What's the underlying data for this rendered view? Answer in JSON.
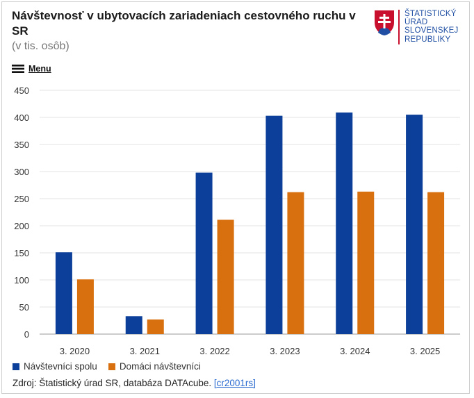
{
  "header": {
    "title": "Návštevnosť v ubytovacích zariadeniach cestovného ruchu v SR",
    "subtitle": "(v tis. osôb)"
  },
  "logo": {
    "icon": "slovak-coat-of-arms-icon",
    "lines": [
      "ŠTATISTICKÝ",
      "ÚRAD",
      "SLOVENSKEJ",
      "REPUBLIKY"
    ]
  },
  "menu": {
    "icon": "hamburger-icon",
    "label": "Menu"
  },
  "chart_data": {
    "type": "bar",
    "categories": [
      "3. 2020",
      "3. 2021",
      "3. 2022",
      "3. 2023",
      "3. 2024",
      "3. 2025"
    ],
    "series": [
      {
        "name": "Návštevníci spolu",
        "color": "#0c3f99",
        "values": [
          151,
          33,
          298,
          403,
          409,
          405
        ]
      },
      {
        "name": "Domáci návštevníci",
        "color": "#d9700f",
        "values": [
          101,
          27,
          211,
          262,
          263,
          262
        ]
      }
    ],
    "ylim": [
      0,
      450
    ],
    "yticks": [
      0,
      50,
      100,
      150,
      200,
      250,
      300,
      350,
      400,
      450
    ],
    "grid": true,
    "legend": "bottom-left"
  },
  "footer": {
    "source_prefix": "Zdroj: Štatistický úrad SR, databáza DATAcube.",
    "source_link": "[cr2001rs]"
  }
}
